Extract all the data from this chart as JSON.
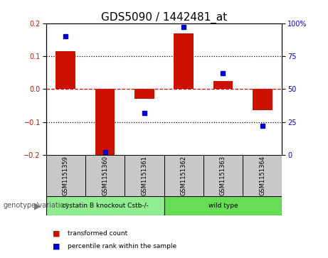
{
  "title": "GDS5090 / 1442481_at",
  "samples": [
    "GSM1151359",
    "GSM1151360",
    "GSM1151361",
    "GSM1151362",
    "GSM1151363",
    "GSM1151364"
  ],
  "transformed_counts": [
    0.115,
    -0.205,
    -0.03,
    0.17,
    0.025,
    -0.065
  ],
  "percentile_ranks": [
    90,
    2,
    32,
    97,
    62,
    22
  ],
  "ylim_left": [
    -0.2,
    0.2
  ],
  "ylim_right": [
    0,
    100
  ],
  "bar_color": "#cc1100",
  "marker_color": "#0000cc",
  "groups": [
    {
      "label": "cystatin B knockout Cstb-/-",
      "indices": [
        0,
        1,
        2
      ],
      "color": "#90ee90"
    },
    {
      "label": "wild type",
      "indices": [
        3,
        4,
        5
      ],
      "color": "#66dd55"
    }
  ],
  "group_label_prefix": "genotype/variation",
  "legend_red": "transformed count",
  "legend_blue": "percentile rank within the sample",
  "grid_values": [
    0.1,
    0.0,
    -0.1
  ],
  "zero_line_color": "#cc0000",
  "dotted_color": "#000000",
  "tick_label_size": 7,
  "title_fontsize": 11,
  "sample_box_color": "#c8c8c8",
  "yticks": [
    -0.2,
    -0.1,
    0.0,
    0.1,
    0.2
  ],
  "right_yticks": [
    0,
    25,
    50,
    75,
    100
  ],
  "right_yticklabels": [
    "0",
    "25",
    "50",
    "75",
    "100%"
  ]
}
